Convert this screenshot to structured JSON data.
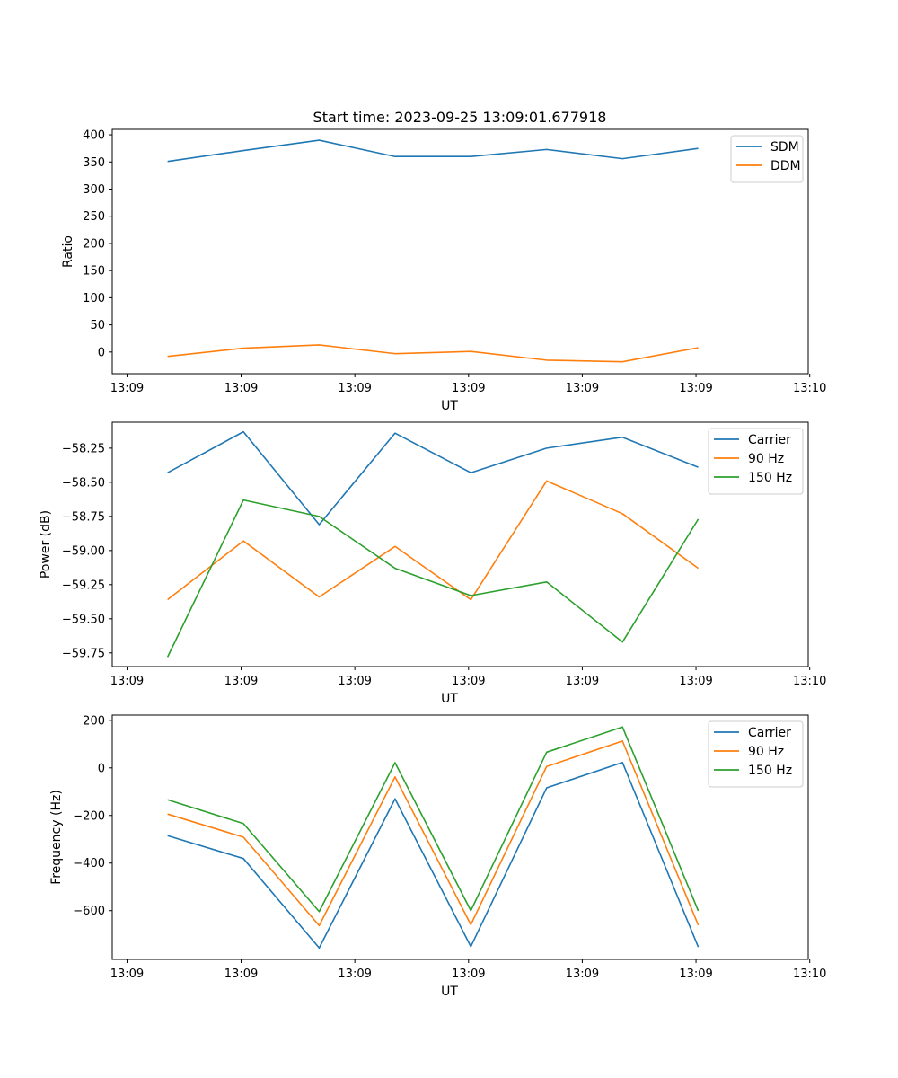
{
  "figure_title": "Start time: 2023-09-25 13:09:01.677918",
  "colors": {
    "blue": "#1f77b4",
    "orange": "#ff7f0e",
    "green": "#2ca02c"
  },
  "chart_data": [
    {
      "type": "line",
      "title": "Start time: 2023-09-25 13:09:01.677918",
      "xlabel": "UT",
      "ylabel": "Ratio",
      "x": [
        1,
        2,
        3,
        4,
        5,
        6,
        7,
        8
      ],
      "xlim": [
        0.27,
        9.45
      ],
      "x_ticks": [
        0.465,
        1.97,
        3.47,
        4.97,
        6.47,
        7.97,
        9.47
      ],
      "x_tick_labels": [
        "13:09",
        "13:09",
        "13:09",
        "13:09",
        "13:09",
        "13:09",
        "13:10"
      ],
      "ylim": [
        -40,
        410
      ],
      "y_ticks": [
        0,
        50,
        100,
        150,
        200,
        250,
        300,
        350,
        400
      ],
      "y_tick_labels": [
        "0",
        "50",
        "100",
        "150",
        "200",
        "250",
        "300",
        "350",
        "400"
      ],
      "legend_position": "top-right",
      "series": [
        {
          "name": "SDM",
          "color": "#1f77b4",
          "values": [
            351,
            371,
            390,
            360,
            360,
            373,
            356,
            375
          ]
        },
        {
          "name": "DDM",
          "color": "#ff7f0e",
          "values": [
            -8,
            7,
            13,
            -3,
            1,
            -15,
            -18,
            8
          ]
        }
      ]
    },
    {
      "type": "line",
      "title": "",
      "xlabel": "UT",
      "ylabel": "Power (dB)",
      "x": [
        1,
        2,
        3,
        4,
        5,
        6,
        7,
        8
      ],
      "xlim": [
        0.27,
        9.45
      ],
      "x_ticks": [
        0.465,
        1.97,
        3.47,
        4.97,
        6.47,
        7.97,
        9.47
      ],
      "x_tick_labels": [
        "13:09",
        "13:09",
        "13:09",
        "13:09",
        "13:09",
        "13:09",
        "13:10"
      ],
      "ylim": [
        -59.85,
        -58.06
      ],
      "y_ticks": [
        -59.75,
        -59.5,
        -59.25,
        -59.0,
        -58.75,
        -58.5,
        -58.25
      ],
      "y_tick_labels": [
        "−59.75",
        "−59.50",
        "−59.25",
        "−59.00",
        "−58.75",
        "−58.50",
        "−58.25"
      ],
      "legend_position": "top-right",
      "series": [
        {
          "name": "Carrier",
          "color": "#1f77b4",
          "values": [
            -58.43,
            -58.13,
            -58.81,
            -58.14,
            -58.43,
            -58.25,
            -58.17,
            -58.39
          ]
        },
        {
          "name": "90 Hz",
          "color": "#ff7f0e",
          "values": [
            -59.36,
            -58.93,
            -59.34,
            -58.97,
            -59.36,
            -58.49,
            -58.73,
            -59.13
          ]
        },
        {
          "name": "150 Hz",
          "color": "#2ca02c",
          "values": [
            -59.78,
            -58.63,
            -58.75,
            -59.13,
            -59.33,
            -59.23,
            -59.67,
            -58.77
          ]
        }
      ]
    },
    {
      "type": "line",
      "title": "",
      "xlabel": "UT",
      "ylabel": "Frequency (Hz)",
      "x": [
        1,
        2,
        3,
        4,
        5,
        6,
        7,
        8
      ],
      "xlim": [
        0.27,
        9.45
      ],
      "x_ticks": [
        0.465,
        1.97,
        3.47,
        4.97,
        6.47,
        7.97,
        9.47
      ],
      "x_tick_labels": [
        "13:09",
        "13:09",
        "13:09",
        "13:09",
        "13:09",
        "13:09",
        "13:10"
      ],
      "ylim": [
        -805,
        222
      ],
      "y_ticks": [
        -600,
        -400,
        -200,
        0,
        200
      ],
      "y_tick_labels": [
        "−600",
        "−400",
        "−200",
        "0",
        "200"
      ],
      "legend_position": "top-right",
      "series": [
        {
          "name": "Carrier",
          "color": "#1f77b4",
          "values": [
            -285,
            -381,
            -757,
            -130,
            -751,
            -84,
            23,
            -753
          ]
        },
        {
          "name": "90 Hz",
          "color": "#ff7f0e",
          "values": [
            -194,
            -291,
            -663,
            -38,
            -659,
            6,
            113,
            -661
          ]
        },
        {
          "name": "150 Hz",
          "color": "#2ca02c",
          "values": [
            -134,
            -234,
            -604,
            22,
            -600,
            66,
            172,
            -601
          ]
        }
      ]
    }
  ]
}
